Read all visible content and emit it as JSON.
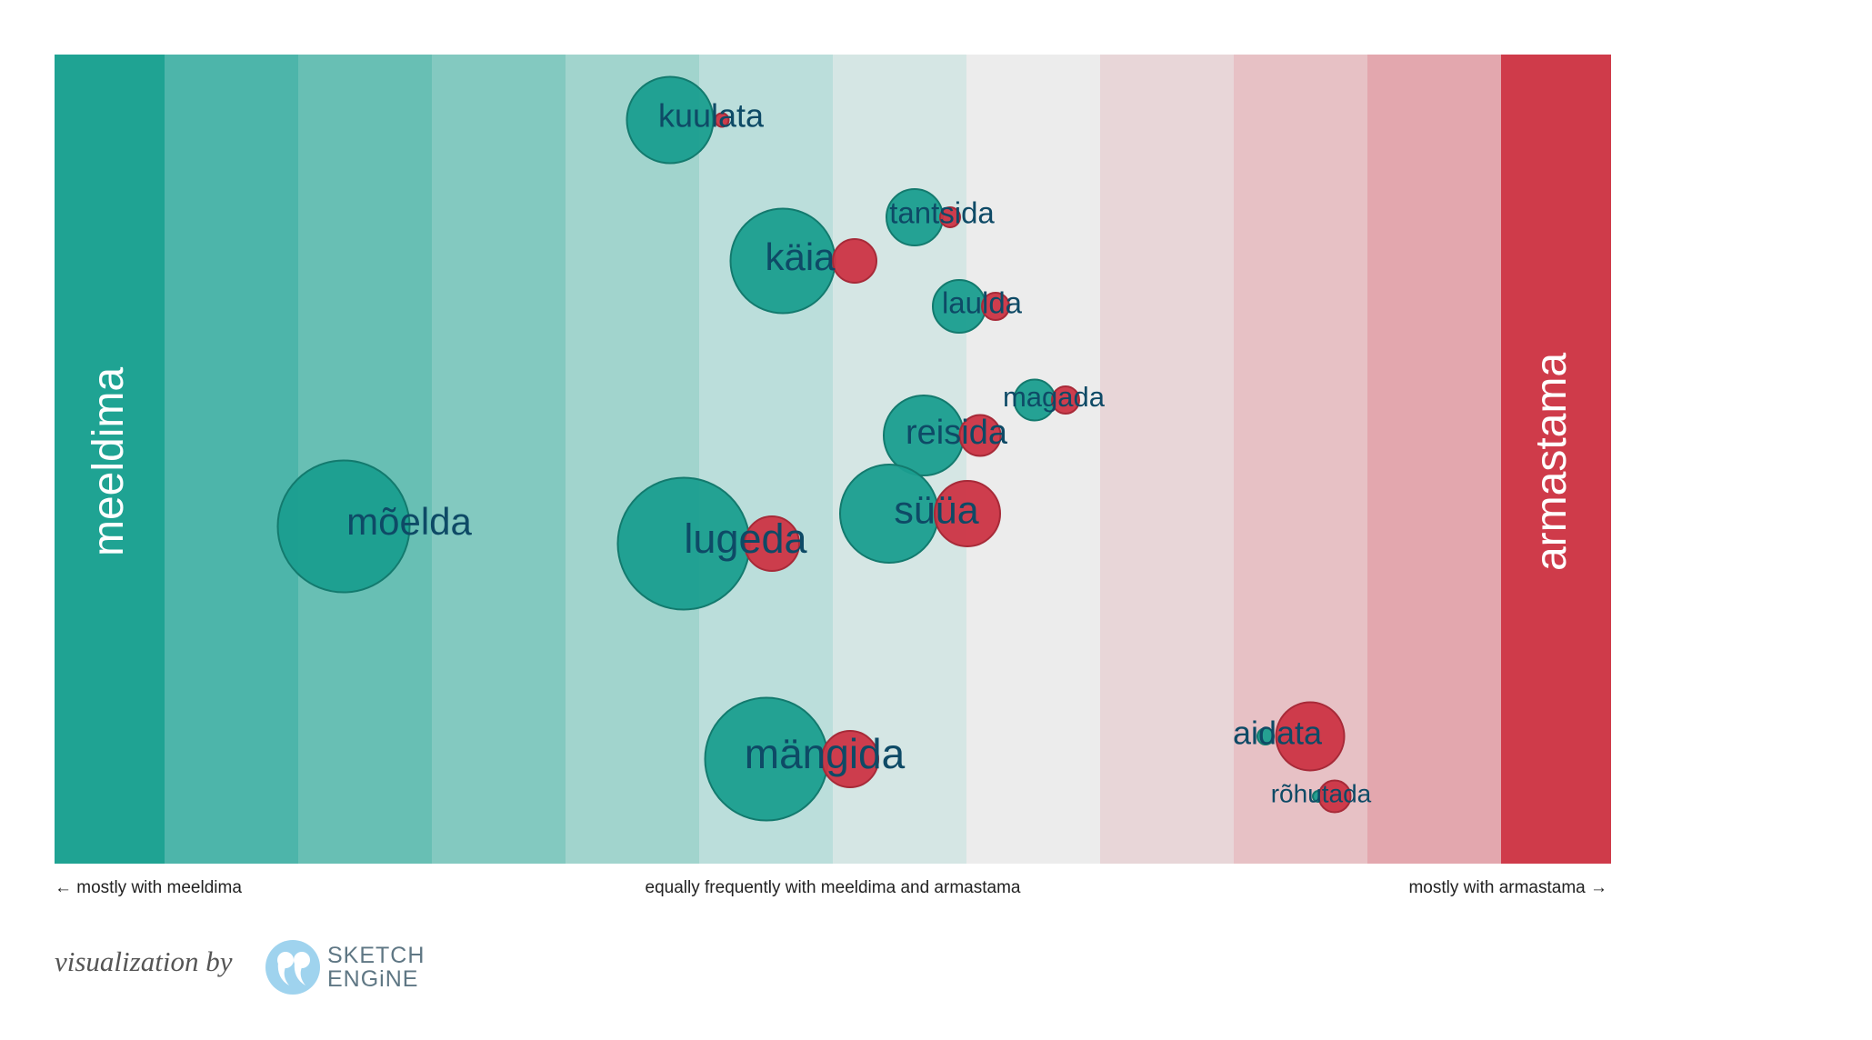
{
  "labels": {
    "left_end": "meeldima",
    "right_end": "armastama",
    "caption_left": "← mostly with meeldima",
    "caption_mid": "equally frequently with meeldima and armastama",
    "caption_right": "mostly with armastama →",
    "credit": "visualization by",
    "logo_line1": "SKETCH",
    "logo_line2": "ENGiNE"
  },
  "colors": {
    "meeldima": "#1a9e8f",
    "armastama": "#cc3444",
    "word_text": "#0e4a66",
    "bands": [
      "#1fa393",
      "#4db5aa",
      "#68bfb4",
      "#83c9c0",
      "#a1d4cd",
      "#bbdedb",
      "#d5e6e4",
      "#ececec",
      "#e8d6d8",
      "#e7c1c5",
      "#e3a7ae",
      "#cf3b4a"
    ]
  },
  "chart_data": {
    "type": "scatter",
    "x_meaning": "preference between meeldima (left) and armastama (right)",
    "items": [
      {
        "word": "kuulata",
        "meeldima_size": 0.95,
        "armastama_size": 0.15,
        "score": -0.15
      },
      {
        "word": "tantsida",
        "meeldima_size": 0.62,
        "armastama_size": 0.22,
        "score": 0.12
      },
      {
        "word": "käia",
        "meeldima_size": 1.15,
        "armastama_size": 0.48,
        "score": -0.08
      },
      {
        "word": "laulda",
        "meeldima_size": 0.58,
        "armastama_size": 0.3,
        "score": 0.16
      },
      {
        "word": "magada",
        "meeldima_size": 0.45,
        "armastama_size": 0.3,
        "score": 0.28
      },
      {
        "word": "reisida",
        "meeldima_size": 0.88,
        "armastama_size": 0.45,
        "score": 0.08
      },
      {
        "word": "mõelda",
        "meeldima_size": 1.45,
        "armastama_size": 0.0,
        "score": -0.78
      },
      {
        "word": "lugeda",
        "meeldima_size": 1.45,
        "armastama_size": 0.6,
        "score": -0.12
      },
      {
        "word": "süüa",
        "meeldima_size": 1.08,
        "armastama_size": 0.72,
        "score": 0.07
      },
      {
        "word": "mängida",
        "meeldima_size": 1.35,
        "armastama_size": 0.62,
        "score": -0.05
      },
      {
        "word": "aidata",
        "meeldima_size": 0.18,
        "armastama_size": 0.75,
        "score": 0.63
      },
      {
        "word": "rõhutada",
        "meeldima_size": 0.08,
        "armastama_size": 0.35,
        "score": 0.65
      }
    ]
  }
}
